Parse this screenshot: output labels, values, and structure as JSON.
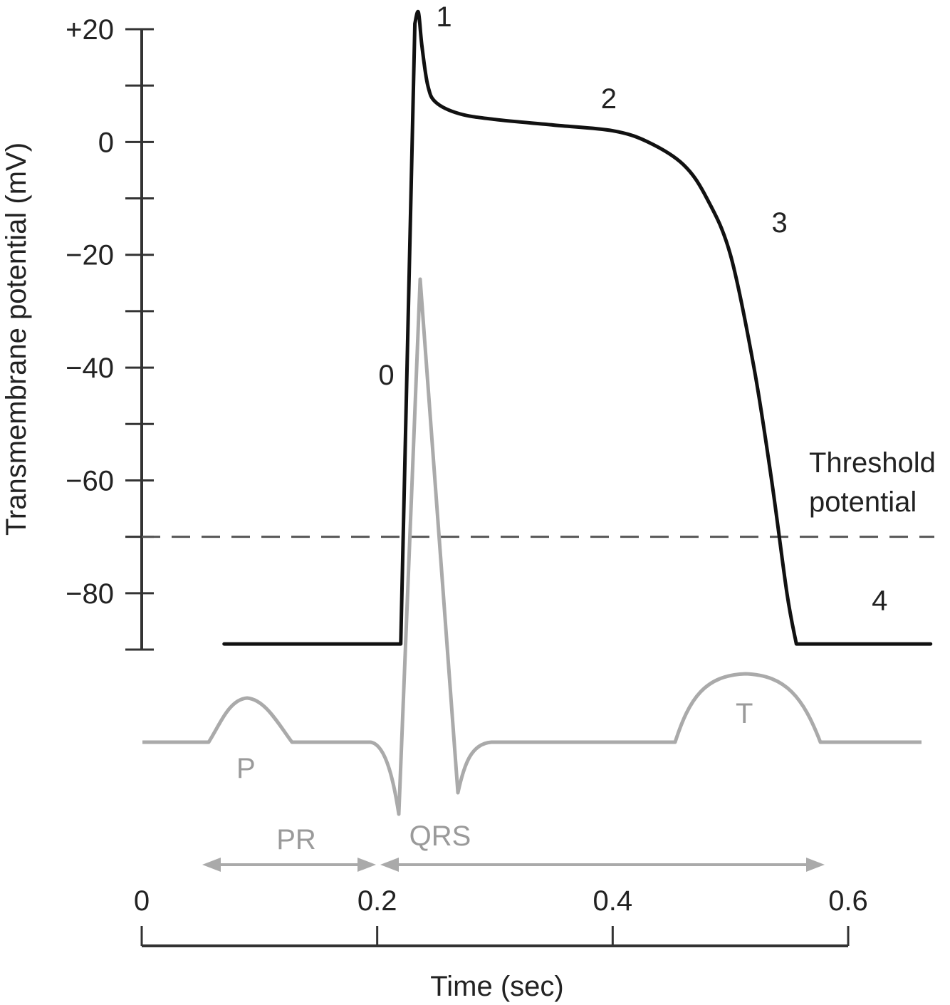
{
  "chart_data": {
    "type": "line",
    "title": "",
    "ylabel": "Transmembrane potential (mV)",
    "xlabel": "Time (sec)",
    "ylim": [
      -90,
      20
    ],
    "xlim": [
      0,
      0.6
    ],
    "y_ticks": [
      {
        "value": 20,
        "label": "+20"
      },
      {
        "value": 0,
        "label": "0"
      },
      {
        "value": -20,
        "label": "−20"
      },
      {
        "value": -40,
        "label": "−40"
      },
      {
        "value": -60,
        "label": "−60"
      },
      {
        "value": -80,
        "label": "−80"
      }
    ],
    "y_minor_ticks": [
      20,
      10,
      0,
      -10,
      -20,
      -30,
      -40,
      -50,
      -60,
      -70,
      -80,
      -90
    ],
    "x_ticks": [
      {
        "value": 0,
        "label": "0"
      },
      {
        "value": 0.2,
        "label": "0.2"
      },
      {
        "value": 0.4,
        "label": "0.4"
      },
      {
        "value": 0.6,
        "label": "0.6"
      }
    ],
    "threshold": {
      "value": -70,
      "label_line1": "Threshold",
      "label_line2": "potential"
    },
    "action_potential": {
      "name": "",
      "color": "#111111",
      "points": [
        [
          0.07,
          -89
        ],
        [
          0.22,
          -89
        ],
        [
          0.232,
          21
        ],
        [
          0.235,
          23
        ],
        [
          0.238,
          17
        ],
        [
          0.243,
          10
        ],
        [
          0.25,
          7
        ],
        [
          0.27,
          5
        ],
        [
          0.3,
          4
        ],
        [
          0.35,
          3
        ],
        [
          0.4,
          2
        ],
        [
          0.43,
          0
        ],
        [
          0.46,
          -4
        ],
        [
          0.48,
          -10
        ],
        [
          0.5,
          -20
        ],
        [
          0.52,
          -40
        ],
        [
          0.535,
          -60
        ],
        [
          0.548,
          -80
        ],
        [
          0.556,
          -89
        ],
        [
          0.67,
          -89
        ]
      ],
      "phase_labels": [
        {
          "label": "0",
          "x": 0.201,
          "y": -43
        },
        {
          "label": "1",
          "x": 0.25,
          "y": 20.5
        },
        {
          "label": "2",
          "x": 0.39,
          "y": 6
        },
        {
          "label": "3",
          "x": 0.535,
          "y": -16
        },
        {
          "label": "4",
          "x": 0.62,
          "y": -83
        }
      ]
    },
    "ecg": {
      "name": "",
      "color": "#aaaaaa",
      "labels": {
        "p": "P",
        "qrs": "QRS",
        "t": "T",
        "pr": "PR"
      }
    }
  }
}
